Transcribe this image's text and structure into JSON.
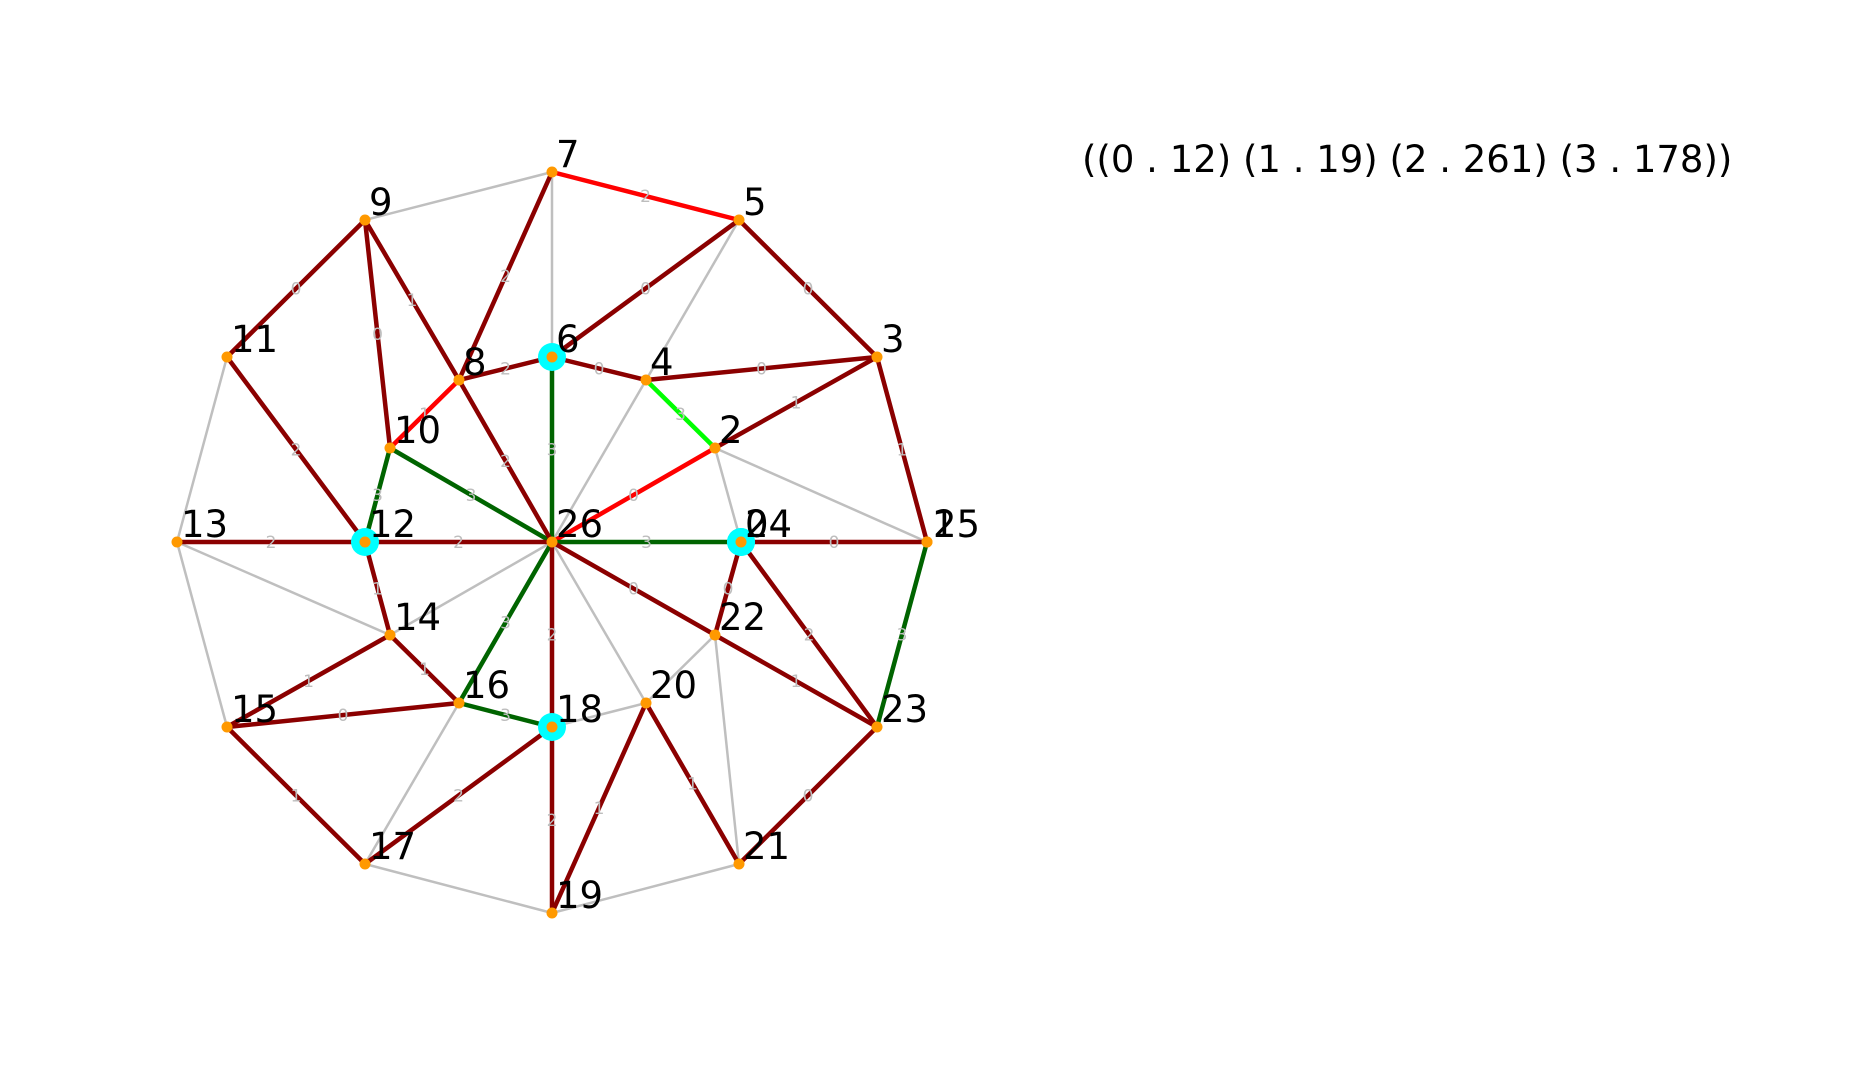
{
  "summary_text": "((0 . 12) (1 . 19) (2 . 261) (3 . 178))",
  "colors": {
    "grey_edge": "#bfbfbf",
    "dark_red_edge": "#8b0000",
    "red_edge": "#ff0000",
    "dark_green_edge": "#006400",
    "light_green_edge": "#00ff00",
    "node_orange": "#ff9900",
    "node_cyan": "#00ffff"
  },
  "nodes": [
    {
      "id": "0",
      "label": "0",
      "highlight": true
    },
    {
      "id": "1",
      "label": "1"
    },
    {
      "id": "2",
      "label": "2"
    },
    {
      "id": "3",
      "label": "3"
    },
    {
      "id": "4",
      "label": "4"
    },
    {
      "id": "5",
      "label": "5"
    },
    {
      "id": "6",
      "label": "6",
      "highlight": true
    },
    {
      "id": "7",
      "label": "7"
    },
    {
      "id": "8",
      "label": "8"
    },
    {
      "id": "9",
      "label": "9"
    },
    {
      "id": "10",
      "label": "10"
    },
    {
      "id": "11",
      "label": "11"
    },
    {
      "id": "12",
      "label": "12",
      "highlight": true
    },
    {
      "id": "13",
      "label": "13"
    },
    {
      "id": "14",
      "label": "14"
    },
    {
      "id": "15",
      "label": "15"
    },
    {
      "id": "16",
      "label": "16"
    },
    {
      "id": "17",
      "label": "17"
    },
    {
      "id": "18",
      "label": "18",
      "highlight": true
    },
    {
      "id": "19",
      "label": "19"
    },
    {
      "id": "20",
      "label": "20"
    },
    {
      "id": "21",
      "label": "21"
    },
    {
      "id": "22",
      "label": "22"
    },
    {
      "id": "23",
      "label": "23"
    },
    {
      "id": "24",
      "label": "24",
      "highlight": true
    },
    {
      "id": "25",
      "label": "25"
    },
    {
      "id": "26",
      "label": "26"
    }
  ],
  "edges": [
    {
      "from": "7",
      "to": "9",
      "color": "grey"
    },
    {
      "from": "7",
      "to": "6",
      "color": "grey"
    },
    {
      "from": "5",
      "to": "26",
      "color": "grey"
    },
    {
      "from": "11",
      "to": "13",
      "color": "grey"
    },
    {
      "from": "11",
      "to": "12",
      "color": "grey"
    },
    {
      "from": "13",
      "to": "15",
      "color": "grey"
    },
    {
      "from": "13",
      "to": "14",
      "color": "grey"
    },
    {
      "from": "14",
      "to": "26",
      "color": "grey"
    },
    {
      "from": "2",
      "to": "25",
      "color": "grey"
    },
    {
      "from": "2",
      "to": "24",
      "color": "grey"
    },
    {
      "from": "22",
      "to": "21",
      "color": "grey"
    },
    {
      "from": "26",
      "to": "20",
      "color": "grey"
    },
    {
      "from": "22",
      "to": "20",
      "color": "grey"
    },
    {
      "from": "20",
      "to": "18",
      "color": "grey"
    },
    {
      "from": "16",
      "to": "17",
      "color": "grey"
    },
    {
      "from": "17",
      "to": "19",
      "color": "grey"
    },
    {
      "from": "19",
      "to": "21",
      "color": "grey"
    },
    {
      "from": "7",
      "to": "5",
      "color": "red",
      "label": "2"
    },
    {
      "from": "8",
      "to": "10",
      "color": "red",
      "label": "1"
    },
    {
      "from": "2",
      "to": "26",
      "color": "red",
      "label": "0"
    },
    {
      "from": "4",
      "to": "2",
      "color": "light-green",
      "label": "3"
    },
    {
      "from": "6",
      "to": "26",
      "color": "dark-green",
      "label": "3"
    },
    {
      "from": "10",
      "to": "26",
      "color": "dark-green",
      "label": "3"
    },
    {
      "from": "10",
      "to": "12",
      "color": "dark-green",
      "label": "3"
    },
    {
      "from": "26",
      "to": "16",
      "color": "dark-green",
      "label": "3"
    },
    {
      "from": "16",
      "to": "18",
      "color": "dark-green",
      "label": "3"
    },
    {
      "from": "1",
      "to": "23",
      "color": "dark-green",
      "label": "3"
    },
    {
      "from": "26",
      "to": "24",
      "color": "dark-green",
      "label": "3"
    },
    {
      "from": "7",
      "to": "8",
      "color": "dark-red",
      "label": "2"
    },
    {
      "from": "5",
      "to": "6",
      "color": "dark-red",
      "label": "0"
    },
    {
      "from": "5",
      "to": "3",
      "color": "dark-red",
      "label": "0"
    },
    {
      "from": "9",
      "to": "11",
      "color": "dark-red",
      "label": "0"
    },
    {
      "from": "9",
      "to": "10",
      "color": "dark-red",
      "label": "0"
    },
    {
      "from": "9",
      "to": "8",
      "color": "dark-red",
      "label": "1"
    },
    {
      "from": "8",
      "to": "6",
      "color": "dark-red",
      "label": "2"
    },
    {
      "from": "6",
      "to": "4",
      "color": "dark-red",
      "label": "0"
    },
    {
      "from": "4",
      "to": "3",
      "color": "dark-red",
      "label": "0"
    },
    {
      "from": "3",
      "to": "2",
      "color": "dark-red",
      "label": "1"
    },
    {
      "from": "3",
      "to": "1",
      "color": "dark-red",
      "label": "1"
    },
    {
      "from": "8",
      "to": "26",
      "color": "dark-red",
      "label": "2"
    },
    {
      "from": "11",
      "to": "12",
      "color": "dark-red",
      "label": "2"
    },
    {
      "from": "13",
      "to": "12",
      "color": "dark-red",
      "label": "2"
    },
    {
      "from": "12",
      "to": "26",
      "color": "dark-red",
      "label": "2"
    },
    {
      "from": "12",
      "to": "14",
      "color": "dark-red",
      "label": "1"
    },
    {
      "from": "14",
      "to": "15",
      "color": "dark-red",
      "label": "1"
    },
    {
      "from": "14",
      "to": "16",
      "color": "dark-red",
      "label": "1"
    },
    {
      "from": "15",
      "to": "16",
      "color": "dark-red",
      "label": "0"
    },
    {
      "from": "15",
      "to": "17",
      "color": "dark-red",
      "label": "1"
    },
    {
      "from": "17",
      "to": "18",
      "color": "dark-red",
      "label": "2"
    },
    {
      "from": "26",
      "to": "18",
      "color": "dark-red",
      "label": "2"
    },
    {
      "from": "18",
      "to": "19",
      "color": "dark-red",
      "label": "2"
    },
    {
      "from": "19",
      "to": "20",
      "color": "dark-red",
      "label": "1"
    },
    {
      "from": "20",
      "to": "21",
      "color": "dark-red",
      "label": "1"
    },
    {
      "from": "21",
      "to": "23",
      "color": "dark-red",
      "label": "0"
    },
    {
      "from": "26",
      "to": "22",
      "color": "dark-red",
      "label": "0"
    },
    {
      "from": "22",
      "to": "23",
      "color": "dark-red",
      "label": "1"
    },
    {
      "from": "0",
      "to": "22",
      "color": "dark-red",
      "label": "0"
    },
    {
      "from": "0",
      "to": "23",
      "color": "dark-red",
      "label": "2"
    },
    {
      "from": "0",
      "to": "1",
      "color": "dark-red",
      "label": "0"
    }
  ]
}
